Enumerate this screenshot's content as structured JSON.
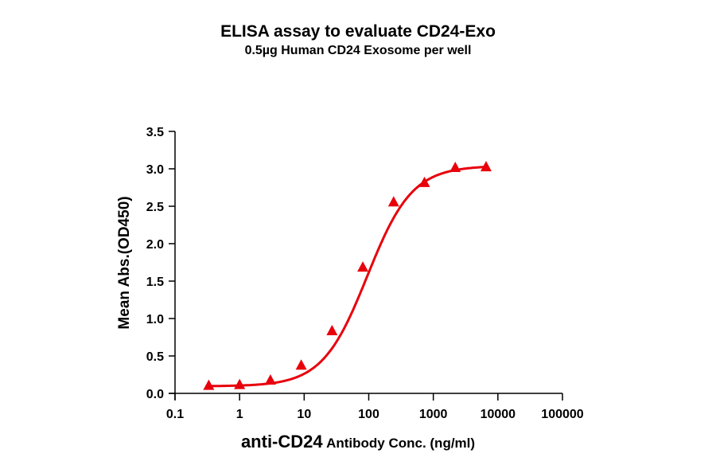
{
  "chart_data": {
    "type": "scatter",
    "title": "ELISA assay to evaluate CD24-Exo",
    "subtitle": "0.5µg Human CD24 Exosome per well",
    "xlabel": "anti-CD24 Antibody Conc. (ng/ml)",
    "xlabel_parts": {
      "bold_large": "anti-CD24",
      "rest": "Antibody Conc. (ng/ml)"
    },
    "ylabel": "Mean Abs.(OD450)",
    "xscale": "log",
    "xlim": [
      0.1,
      100000
    ],
    "ylim": [
      0.0,
      3.5
    ],
    "x_ticks": [
      0.1,
      1,
      10,
      100,
      1000,
      10000,
      100000
    ],
    "x_tick_labels": [
      "0.1",
      "1",
      "10",
      "100",
      "1000",
      "10000",
      "100000"
    ],
    "y_ticks": [
      0.0,
      0.5,
      1.0,
      1.5,
      2.0,
      2.5,
      3.0,
      3.5
    ],
    "y_tick_labels": [
      "0.0",
      "0.5",
      "1.0",
      "1.5",
      "2.0",
      "2.5",
      "3.0",
      "3.5"
    ],
    "grid": false,
    "legend": null,
    "series": [
      {
        "name": "CD24-Exo",
        "marker": "triangle",
        "color": "#e8000b",
        "fit": "4PL sigmoid",
        "x": [
          0.333,
          1,
          3,
          9,
          27,
          81,
          243,
          729,
          2187,
          6561
        ],
        "y": [
          0.1,
          0.11,
          0.17,
          0.37,
          0.83,
          1.68,
          2.55,
          2.81,
          3.01,
          3.02
        ]
      }
    ]
  }
}
